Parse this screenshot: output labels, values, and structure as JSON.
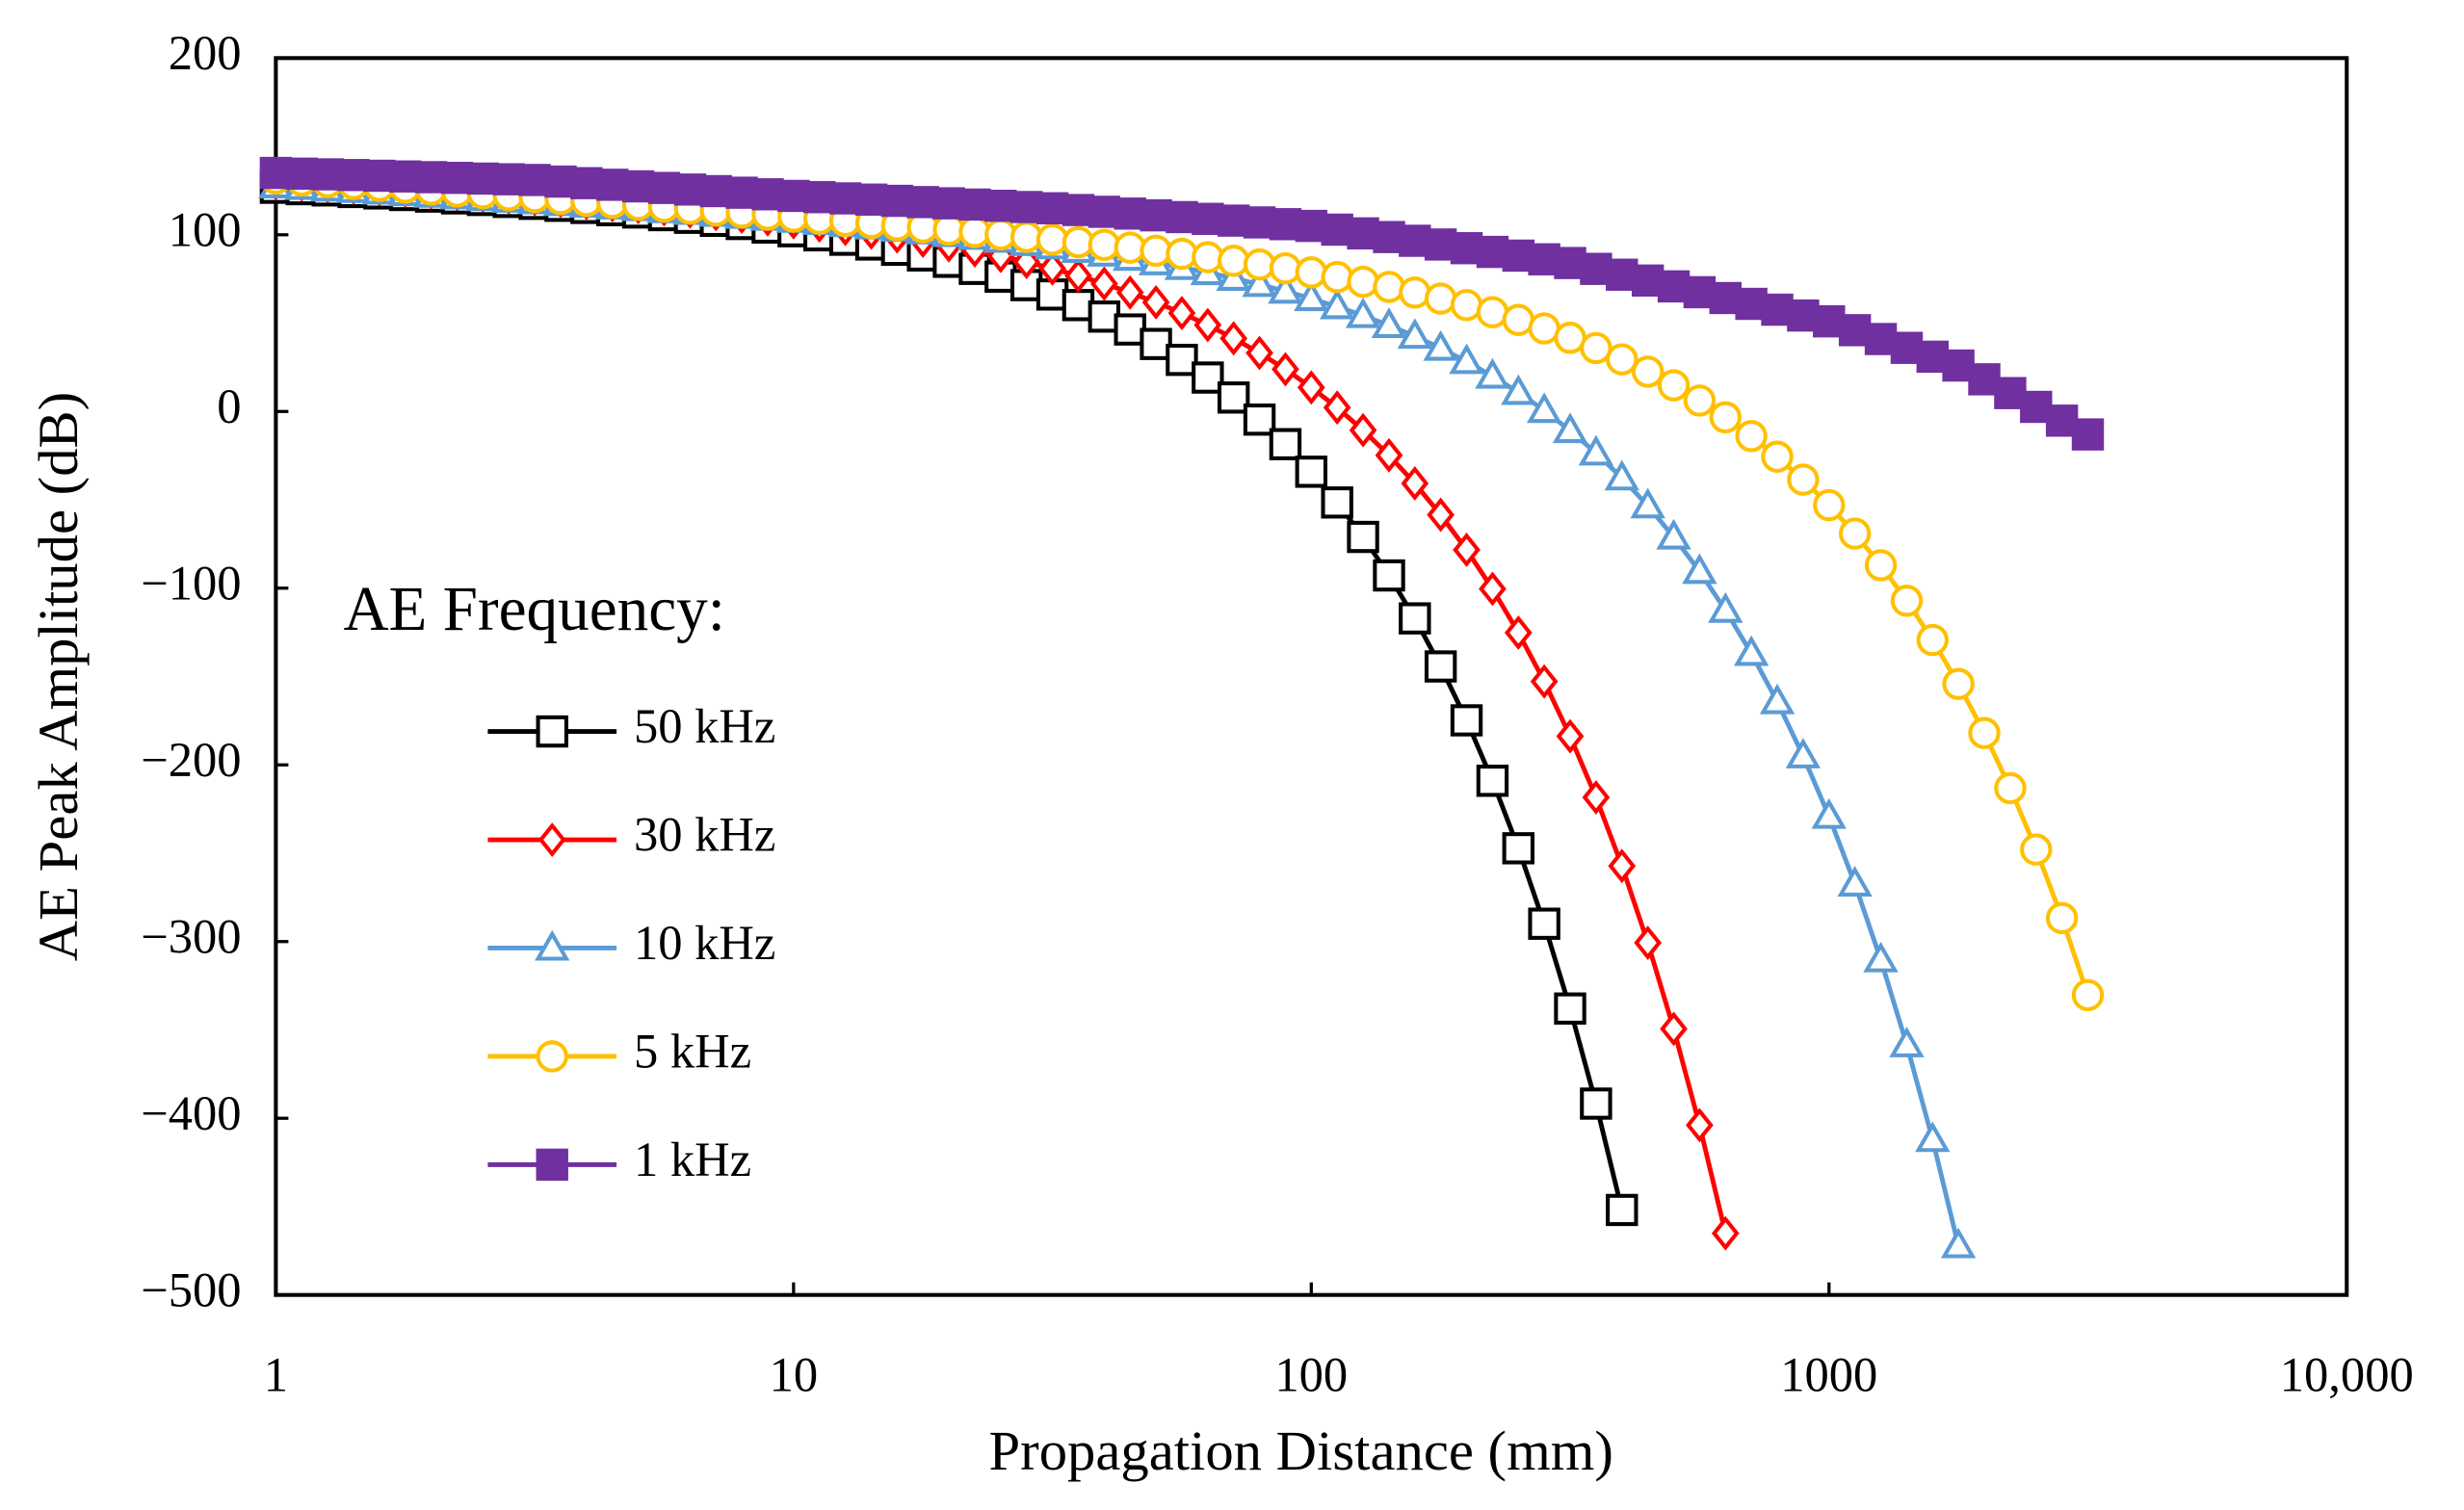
{
  "chart_data": {
    "type": "line",
    "x_label": "Propagation Distance (mm)",
    "y_label": "AE Peak Amplitude (dB)",
    "legend_title": "AE Frequency:",
    "legend": "left",
    "xscale": "log",
    "xlim": [
      1,
      10000
    ],
    "ylim": [
      -500,
      200
    ],
    "xticks": [
      1,
      10,
      100,
      1000,
      {
        "value": 10000,
        "label": "10,000"
      }
    ],
    "yticks": [
      200,
      100,
      0,
      {
        "value": -100,
        "label": "−100"
      },
      {
        "value": -200,
        "label": "−200"
      },
      {
        "value": -300,
        "label": "−300"
      },
      {
        "value": -400,
        "label": "−400"
      },
      {
        "value": -500,
        "label": "−500"
      }
    ],
    "x": [
      1,
      1.122,
      1.259,
      1.413,
      1.585,
      1.778,
      1.995,
      2.239,
      2.512,
      2.818,
      3.162,
      3.548,
      3.981,
      4.467,
      5.012,
      5.623,
      6.31,
      7.079,
      7.943,
      8.913,
      10,
      11.22,
      12.59,
      14.13,
      15.85,
      17.78,
      19.95,
      22.39,
      25.12,
      28.18,
      31.62,
      35.48,
      39.81,
      44.67,
      50.12,
      56.23,
      63.1,
      70.79,
      79.43,
      89.13,
      100,
      112.2,
      125.9,
      141.3,
      158.5,
      177.8,
      199.5,
      223.9,
      251.2,
      281.8,
      316.2,
      354.8,
      398.1,
      446.7,
      501.2,
      562.3,
      631,
      707.9,
      794.3,
      891.3,
      1000,
      1122,
      1259,
      1413,
      1585,
      1778,
      1995,
      2239,
      2512,
      2818,
      3162
    ],
    "series": [
      {
        "name": "50 kHz",
        "color": "#000000",
        "marker": "square",
        "values": [
          126.6,
          125.8,
          125.1,
          124.2,
          123.4,
          122.5,
          121.6,
          120.6,
          119.7,
          118.6,
          117.5,
          116.4,
          115.2,
          113.9,
          112.6,
          111.1,
          109.6,
          107.9,
          106.1,
          104.1,
          102.0,
          99.7,
          97.2,
          94.5,
          91.5,
          88.3,
          84.7,
          80.7,
          76.3,
          71.5,
          66.2,
          60.2,
          53.7,
          46.4,
          38.2,
          29.2,
          19.2,
          7.9,
          -4.6,
          -18.5,
          -34.1,
          -51.5,
          -71.0,
          -92.8,
          -117.1,
          -144.3,
          -174.8,
          -209.0,
          -247.2,
          -289.9,
          -337.9,
          -391.7,
          -451.9,
          null,
          null,
          null,
          null,
          null,
          null,
          null,
          null,
          null,
          null,
          null,
          null,
          null,
          null,
          null,
          null,
          null,
          null
        ]
      },
      {
        "name": "30 kHz",
        "color": "#ff0000",
        "marker": "diamond",
        "values": [
          129.1,
          128.3,
          127.5,
          126.6,
          125.8,
          124.9,
          124.0,
          123.1,
          122.1,
          121.1,
          120.1,
          119.1,
          118.0,
          116.8,
          115.7,
          114.4,
          113.1,
          111.7,
          110.2,
          108.7,
          107.0,
          105.2,
          103.3,
          101.2,
          99.0,
          96.6,
          94.0,
          91.1,
          88.0,
          84.6,
          80.9,
          76.8,
          72.3,
          67.3,
          61.8,
          55.7,
          48.9,
          41.4,
          33.1,
          23.9,
          13.6,
          2.2,
          -10.6,
          -24.8,
          -40.7,
          -58.5,
          -78.3,
          -100.4,
          -125.2,
          -152.8,
          -183.8,
          -218.4,
          -257.2,
          -300.7,
          -349.4,
          -403.9,
          -465.1,
          null,
          null,
          null,
          null,
          null,
          null,
          null,
          null,
          null,
          null,
          null,
          null,
          null,
          null
        ]
      },
      {
        "name": "10 kHz",
        "color": "#5b9bd5",
        "marker": "triangle",
        "values": [
          127.7,
          126.8,
          125.9,
          125.1,
          124.2,
          123.3,
          122.4,
          121.5,
          120.5,
          119.6,
          118.7,
          117.7,
          116.8,
          115.8,
          114.8,
          113.7,
          112.7,
          111.6,
          110.5,
          109.4,
          108.2,
          107.0,
          105.8,
          104.5,
          103.1,
          101.7,
          100.2,
          98.6,
          96.9,
          95.1,
          93.2,
          91.2,
          89.1,
          86.7,
          84.2,
          81.5,
          78.6,
          75.4,
          71.9,
          68.1,
          63.9,
          59.3,
          54.3,
          48.7,
          42.6,
          35.8,
          28.3,
          20.0,
          10.8,
          0.6,
          -10.8,
          -23.5,
          -37.6,
          -53.4,
          -71.0,
          -90.5,
          -112.5,
          -136.9,
          -164.2,
          -194.9,
          -229.1,
          -267.4,
          -310.3,
          -358.4,
          -412.0,
          -472.1,
          null,
          null,
          null,
          null,
          null
        ]
      },
      {
        "name": "5 kHz",
        "color": "#ffc000",
        "marker": "circle",
        "values": [
          131.9,
          130.8,
          129.8,
          128.8,
          127.7,
          126.7,
          125.6,
          124.5,
          123.5,
          122.4,
          121.4,
          120.3,
          119.2,
          118.1,
          117.0,
          115.9,
          114.8,
          113.7,
          112.6,
          111.4,
          110.3,
          109.1,
          107.9,
          106.7,
          105.4,
          104.2,
          102.9,
          101.6,
          100.2,
          98.8,
          97.3,
          95.8,
          94.3,
          92.7,
          91.0,
          89.2,
          87.3,
          85.3,
          83.2,
          81.0,
          78.7,
          76.1,
          73.4,
          70.5,
          67.3,
          63.9,
          60.2,
          56.2,
          51.8,
          47.0,
          41.7,
          35.9,
          29.5,
          22.5,
          14.8,
          6.2,
          -3.3,
          -13.9,
          -25.6,
          -38.6,
          -53.0,
          -69.1,
          -87.0,
          -107.1,
          -129.3,
          -154.2,
          -182.0,
          -213.2,
          -247.9,
          -286.7,
          -330.3
        ]
      },
      {
        "name": "1 kHz",
        "color": "#7030a0",
        "marker": "square-filled",
        "values": [
          135,
          134.6,
          134.2,
          133.8,
          133.4,
          133,
          132.6,
          132.2,
          131.8,
          131.4,
          131,
          130.1,
          129.2,
          128.3,
          127.4,
          126.5,
          125.6,
          124.7,
          123.8,
          122.9,
          122,
          121.3,
          120.6,
          119.9,
          119.2,
          118.5,
          117.8,
          117.1,
          116.4,
          115.7,
          115,
          114,
          113,
          112,
          111,
          110,
          109,
          108,
          107,
          106,
          105,
          102.9,
          100.8,
          98.7,
          96.6,
          94.5,
          92.4,
          90.3,
          88.2,
          86.1,
          84,
          80.7,
          77.4,
          74.1,
          70.8,
          67.5,
          64.2,
          60.9,
          57.6,
          54.3,
          51,
          46,
          41,
          36,
          31,
          26,
          18.2,
          10.4,
          2.6,
          -5.2,
          -13
        ]
      }
    ]
  }
}
